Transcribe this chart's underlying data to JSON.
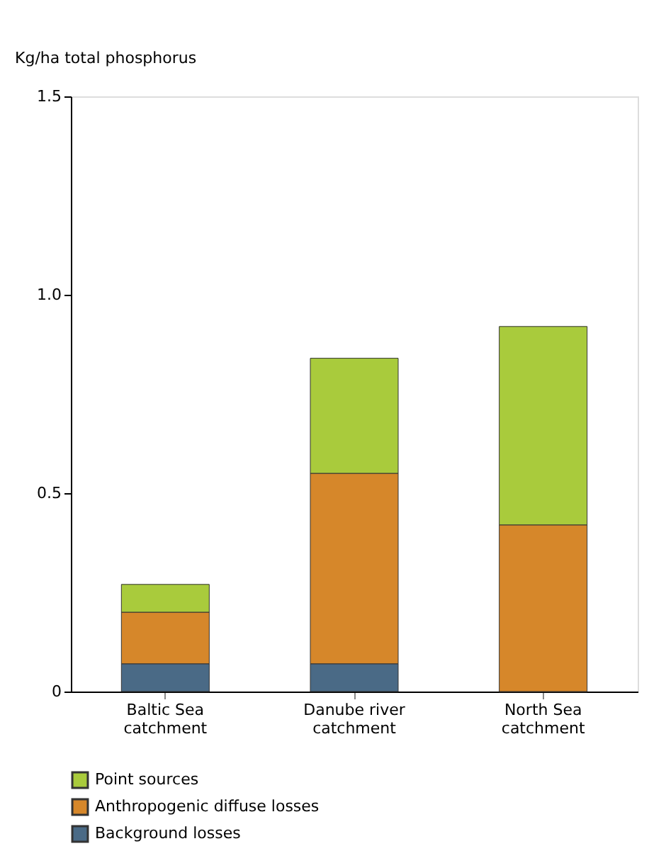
{
  "chart_data": {
    "type": "bar",
    "stacked": true,
    "ylabel": "Kg/ha total phosphorus",
    "categories": [
      "Baltic Sea catchment",
      "Danube river catchment",
      "North Sea catchment"
    ],
    "series": [
      {
        "name": "Background losses",
        "color": "#4a6a86",
        "values": [
          0.07,
          0.07,
          0
        ]
      },
      {
        "name": "Anthropogenic diffuse losses",
        "color": "#d6872a",
        "values": [
          0.13,
          0.48,
          0.42
        ]
      },
      {
        "name": "Point sources",
        "color": "#a9cb3c",
        "values": [
          0.07,
          0.29,
          0.5
        ]
      }
    ],
    "ylim": [
      0,
      1.5
    ],
    "yticks": [
      0,
      {
        "value": 0.5,
        "label": "0.5"
      },
      {
        "value": 1,
        "label": "1.0"
      },
      {
        "value": 1.5,
        "label": "1.5"
      }
    ],
    "grid": false,
    "legend": "bottom"
  }
}
